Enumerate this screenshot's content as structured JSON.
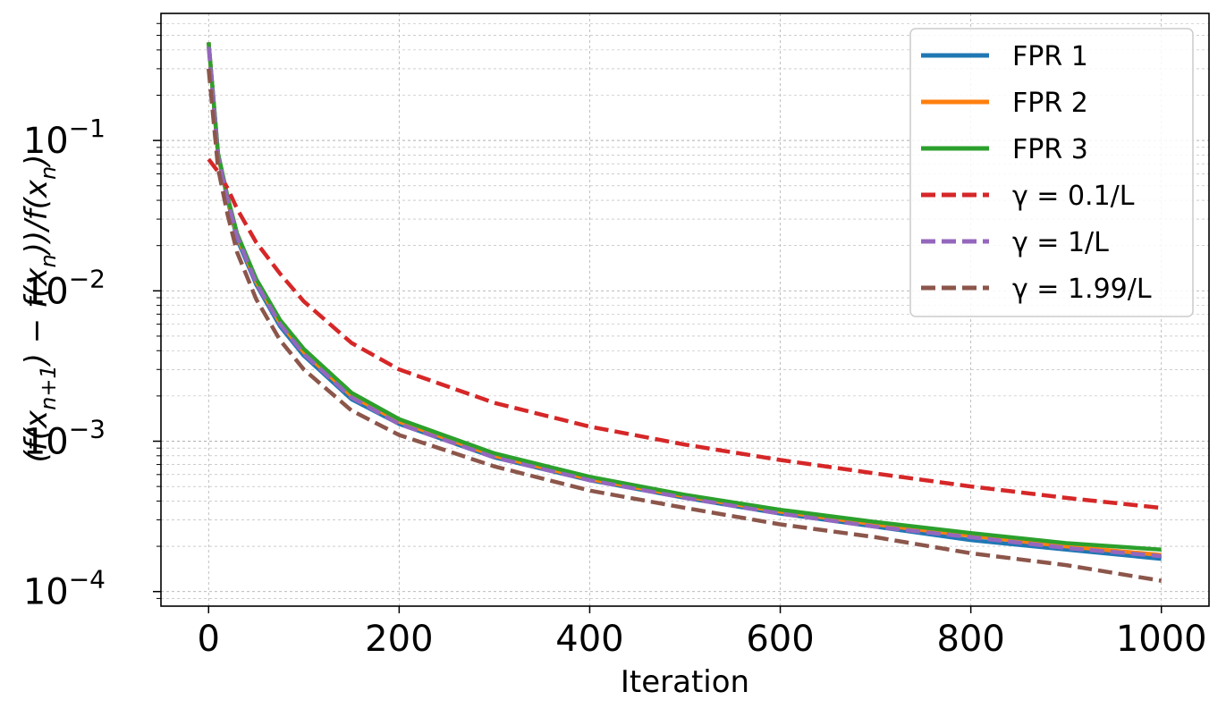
{
  "chart_data": {
    "type": "line",
    "xlabel": "Iteration",
    "ylabel": "(f(x_{n+1}) − f(x_n))/f(x_n)",
    "ylabel_parts": {
      "open": "(f(x",
      "sub1": "n+1",
      "mid": ") − f(x",
      "sub2": "n",
      "mid2": "))/f(x",
      "sub3": "n",
      "close": ")"
    },
    "y_scale": "log",
    "xlim": [
      -50,
      1050
    ],
    "ylim": [
      8e-05,
      0.7
    ],
    "x_ticks": [
      {
        "value": 0,
        "label": "0"
      },
      {
        "value": 200,
        "label": "200"
      },
      {
        "value": 400,
        "label": "400"
      },
      {
        "value": 600,
        "label": "600"
      },
      {
        "value": 800,
        "label": "800"
      },
      {
        "value": 1000,
        "label": "1000"
      }
    ],
    "y_ticks": [
      {
        "value": 0.0001,
        "base": "10",
        "exp": "−4"
      },
      {
        "value": 0.001,
        "base": "10",
        "exp": "−3"
      },
      {
        "value": 0.01,
        "base": "10",
        "exp": "−2"
      },
      {
        "value": 0.1,
        "base": "10",
        "exp": "−1"
      }
    ],
    "grid": true,
    "legend_position": "top-right",
    "series": [
      {
        "name": "FPR 1",
        "color": "#1f77b4",
        "dashed": false,
        "x": [
          0,
          10,
          20,
          30,
          50,
          75,
          100,
          150,
          200,
          300,
          400,
          500,
          600,
          700,
          800,
          900,
          1000
        ],
        "y": [
          0.45,
          0.08,
          0.04,
          0.022,
          0.011,
          0.0058,
          0.0037,
          0.0019,
          0.0013,
          0.00078,
          0.00055,
          0.00042,
          0.00033,
          0.00027,
          0.00022,
          0.00019,
          0.000165
        ]
      },
      {
        "name": "FPR 2",
        "color": "#ff7f0e",
        "dashed": false,
        "x": [
          0,
          10,
          20,
          30,
          50,
          75,
          100,
          150,
          200,
          300,
          400,
          500,
          600,
          700,
          800,
          900,
          1000
        ],
        "y": [
          0.45,
          0.08,
          0.041,
          0.023,
          0.0115,
          0.0061,
          0.0039,
          0.002,
          0.00135,
          0.0008,
          0.00056,
          0.00043,
          0.00034,
          0.00028,
          0.000235,
          0.0002,
          0.000175
        ]
      },
      {
        "name": "FPR 3",
        "color": "#2ca02c",
        "dashed": false,
        "x": [
          0,
          10,
          20,
          30,
          50,
          75,
          100,
          150,
          200,
          300,
          400,
          500,
          600,
          700,
          800,
          900,
          1000
        ],
        "y": [
          0.45,
          0.082,
          0.042,
          0.024,
          0.012,
          0.0064,
          0.0041,
          0.0021,
          0.0014,
          0.00083,
          0.00058,
          0.00044,
          0.00035,
          0.00029,
          0.000245,
          0.00021,
          0.00019
        ]
      },
      {
        "name": "γ = 0.1/L",
        "color": "#d62728",
        "dashed": true,
        "x": [
          0,
          10,
          20,
          30,
          50,
          75,
          100,
          150,
          200,
          300,
          400,
          500,
          600,
          700,
          800,
          900,
          1000
        ],
        "y": [
          0.075,
          0.062,
          0.048,
          0.035,
          0.021,
          0.013,
          0.0085,
          0.0045,
          0.003,
          0.0018,
          0.00125,
          0.00095,
          0.00075,
          0.00061,
          0.0005,
          0.00042,
          0.00036
        ]
      },
      {
        "name": "γ = 1/L",
        "color": "#9467bd",
        "dashed": true,
        "x": [
          0,
          10,
          20,
          30,
          50,
          75,
          100,
          150,
          200,
          300,
          400,
          500,
          600,
          700,
          800,
          900,
          1000
        ],
        "y": [
          0.42,
          0.078,
          0.04,
          0.023,
          0.0112,
          0.006,
          0.0038,
          0.00195,
          0.0013,
          0.00078,
          0.00055,
          0.00042,
          0.00033,
          0.00027,
          0.00023,
          0.000195,
          0.000172
        ]
      },
      {
        "name": "γ = 1.99/L",
        "color": "#8c564b",
        "dashed": true,
        "x": [
          0,
          10,
          20,
          30,
          50,
          75,
          100,
          150,
          200,
          300,
          400,
          500,
          600,
          700,
          800,
          900,
          1000
        ],
        "y": [
          0.3,
          0.065,
          0.032,
          0.018,
          0.0088,
          0.0047,
          0.003,
          0.0016,
          0.0011,
          0.00068,
          0.00047,
          0.00036,
          0.00028,
          0.00023,
          0.00018,
          0.00015,
          0.000118
        ]
      }
    ]
  }
}
